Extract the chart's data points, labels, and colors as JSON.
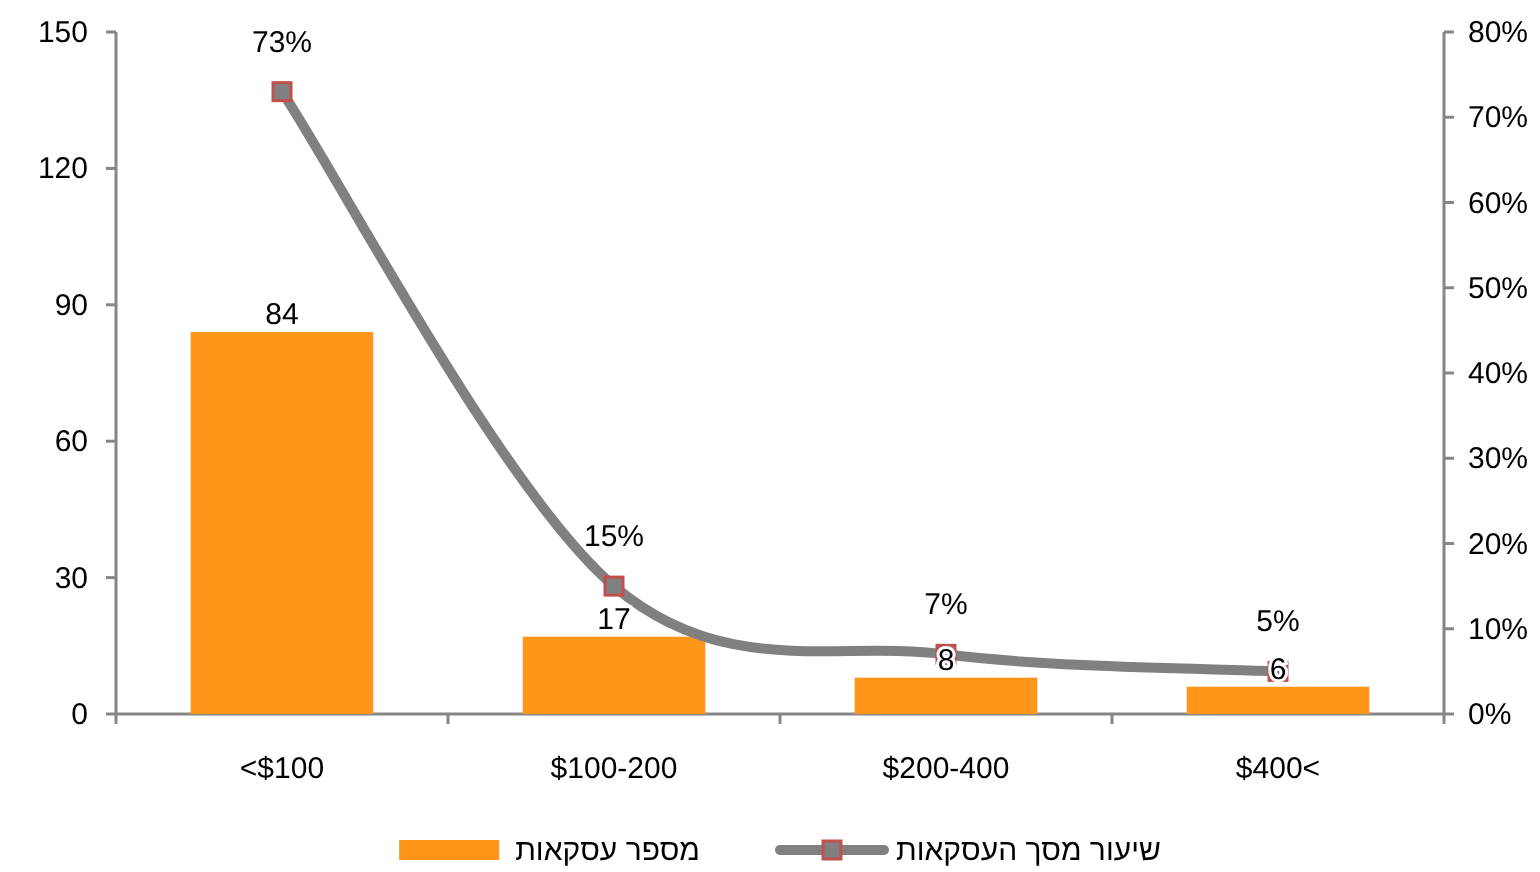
{
  "chart_data": {
    "type": "bar",
    "categories": [
      "<$100",
      "$100-200",
      "$200-400",
      "$400<"
    ],
    "series": [
      {
        "name": "מספר עסקאות",
        "color": "#ff961a",
        "values": [
          84,
          17,
          8,
          6
        ],
        "value_labels": [
          "84",
          "17",
          "8",
          "6"
        ]
      },
      {
        "name": "שיעור מסך העסקאות",
        "type": "line",
        "axis": "y2",
        "color": "#808080",
        "marker": "square",
        "values": [
          73,
          15,
          7,
          5
        ],
        "value_labels": [
          "73%",
          "15%",
          "7%",
          "5%"
        ]
      }
    ],
    "ylim": [
      0,
      150
    ],
    "yticks": [
      0,
      30,
      60,
      90,
      120,
      150
    ],
    "y2lim": [
      0,
      80
    ],
    "y2ticks": [
      {
        "value": 0,
        "label": "0%"
      },
      {
        "value": 10,
        "label": "10%"
      },
      {
        "value": 20,
        "label": "20%"
      },
      {
        "value": 30,
        "label": "30%"
      },
      {
        "value": 40,
        "label": "40%"
      },
      {
        "value": 50,
        "label": "50%"
      },
      {
        "value": 60,
        "label": "60%"
      },
      {
        "value": 70,
        "label": "70%"
      },
      {
        "value": 80,
        "label": "80%"
      }
    ],
    "legend": "bottom"
  }
}
